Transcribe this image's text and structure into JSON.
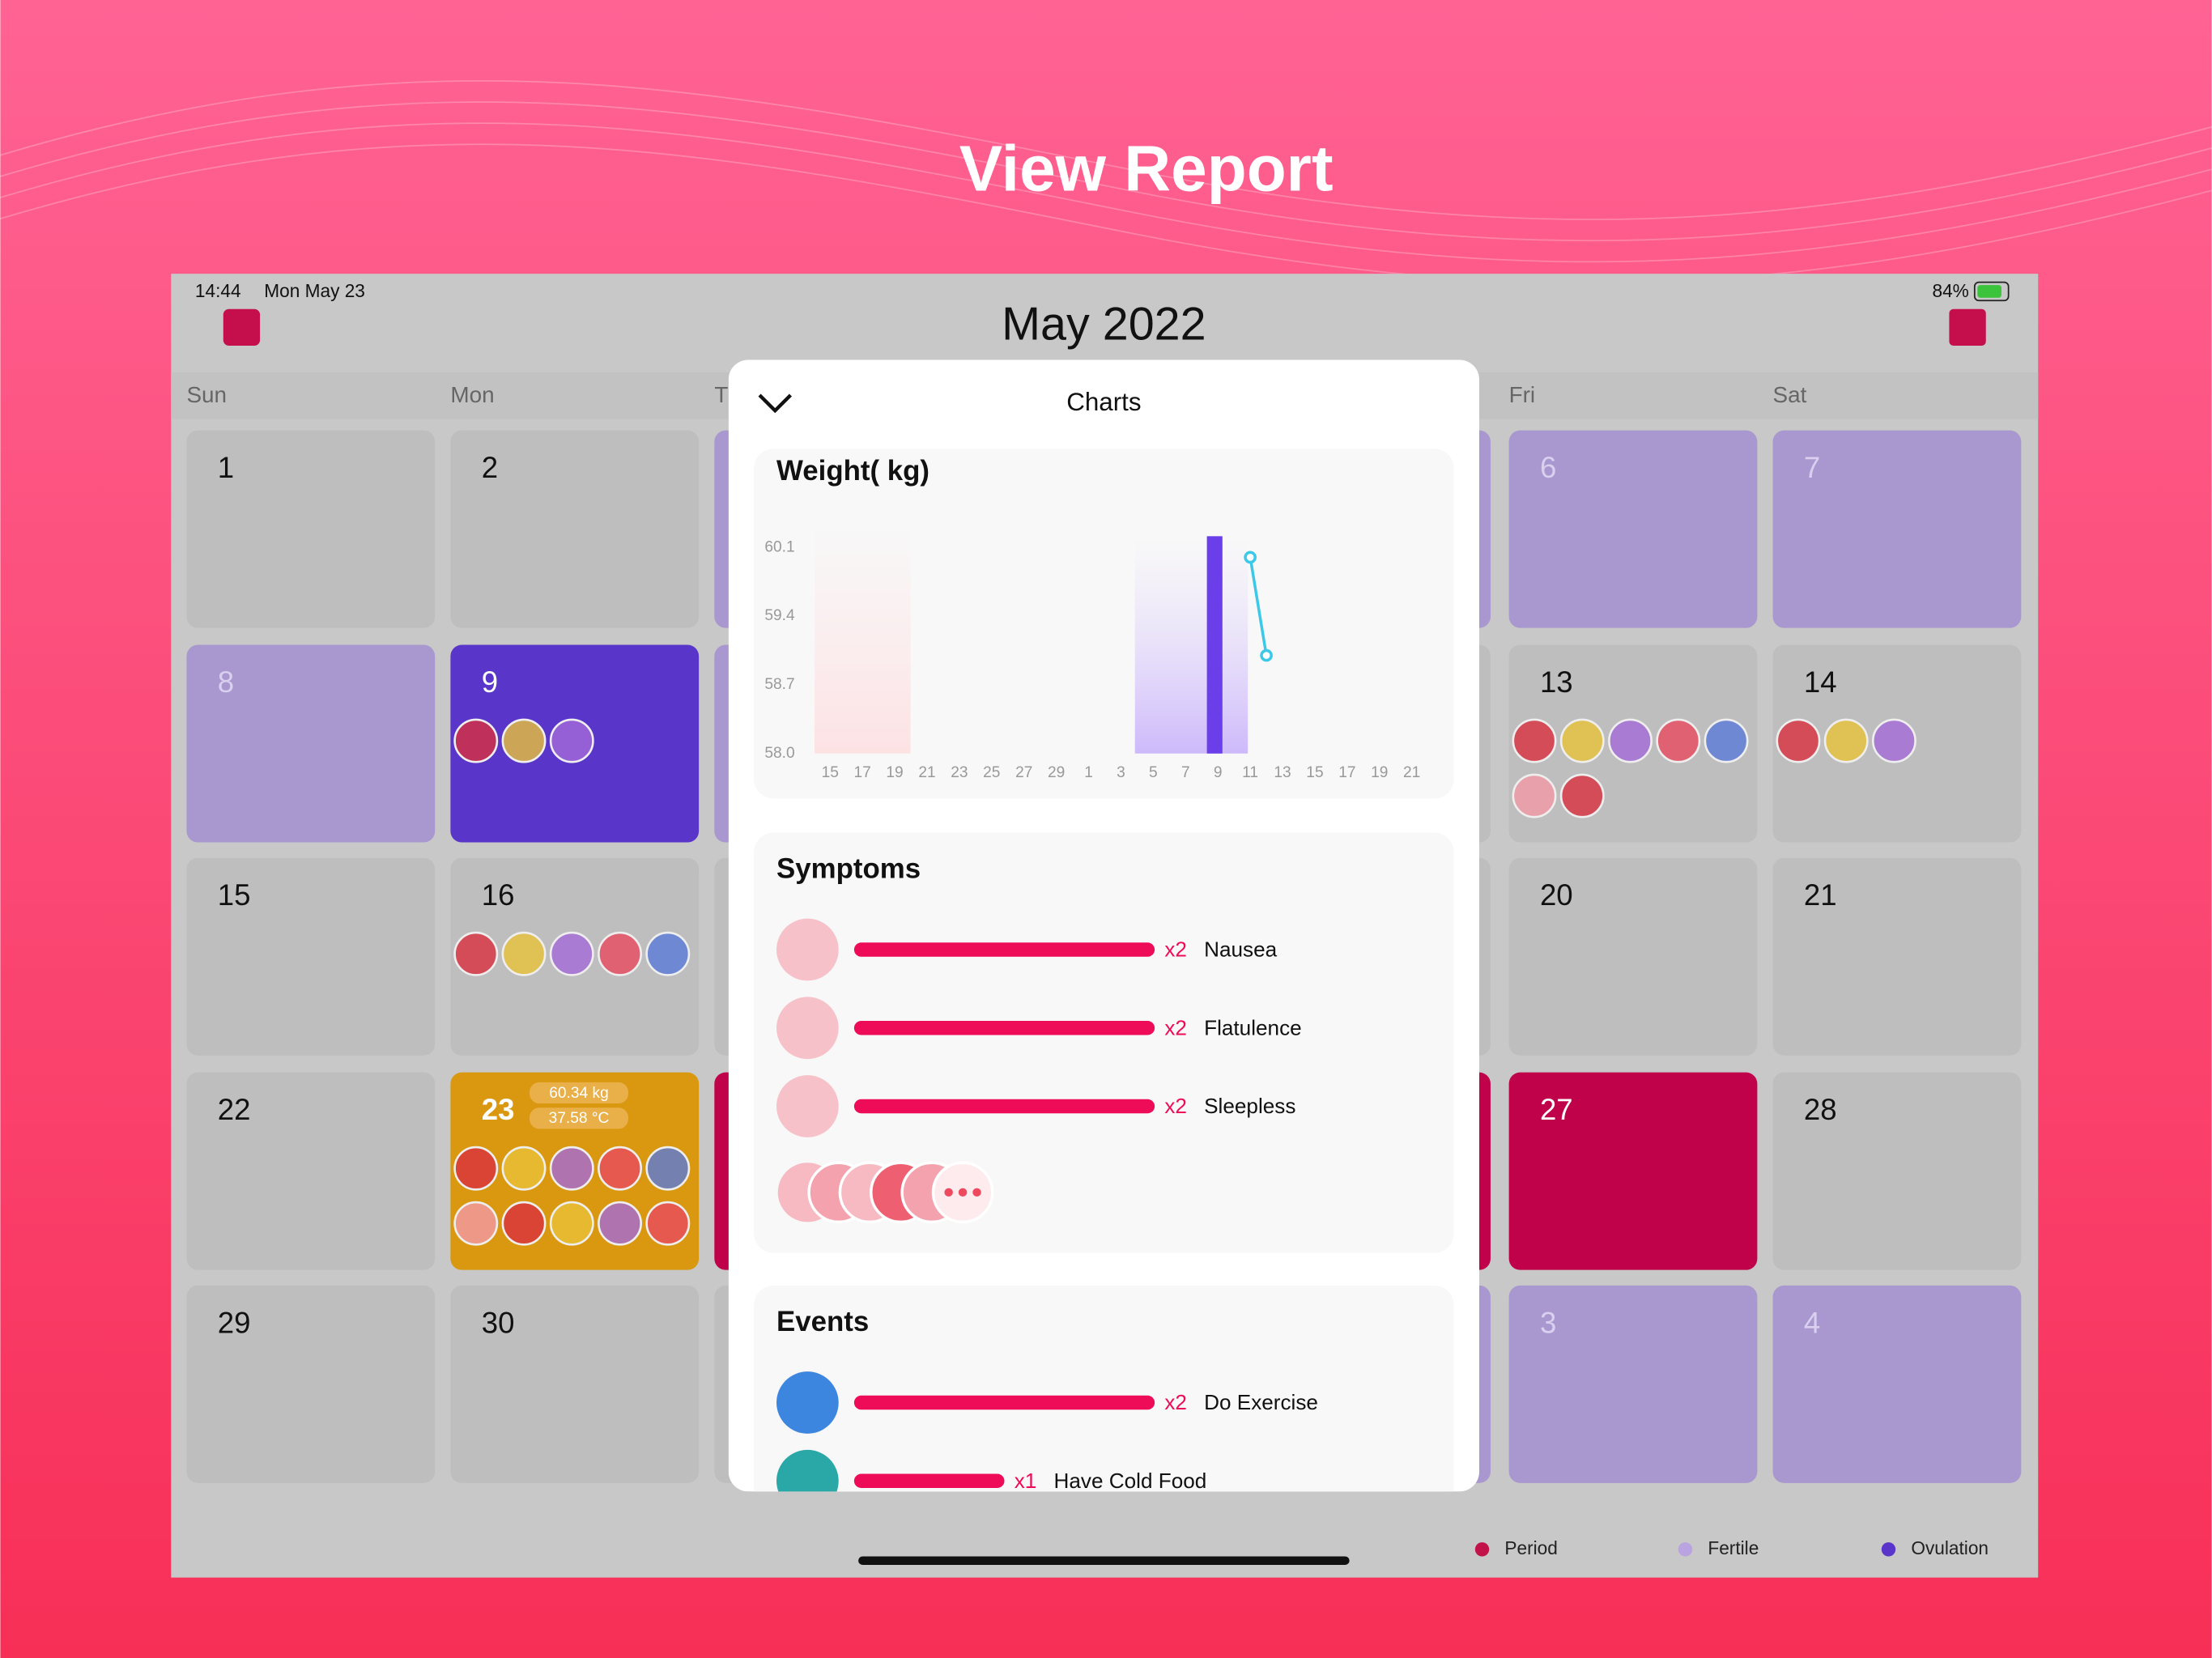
{
  "header": {
    "title": "View Report"
  },
  "status_bar": {
    "time": "14:44",
    "date": "Mon May 23",
    "battery": "84%"
  },
  "calendar": {
    "month": "May 2022",
    "weekdays": [
      "Sun",
      "Mon",
      "T",
      "Fri",
      "Sat"
    ],
    "days": [
      {
        "day": 1
      },
      {
        "day": 2
      },
      {
        "day": 6,
        "phase": "fertile"
      },
      {
        "day": 7,
        "phase": "fertile"
      },
      {
        "day": 8,
        "phase": "fertile"
      },
      {
        "day": 9,
        "phase": "ovulation"
      },
      {
        "day": 13
      },
      {
        "day": 14
      },
      {
        "day": 15
      },
      {
        "day": 16
      },
      {
        "day": 20
      },
      {
        "day": 21
      },
      {
        "day": 22
      },
      {
        "day": 23,
        "phase": "selected",
        "notes": [
          "60.34 kg",
          "37.58 °C"
        ]
      },
      {
        "day": 27,
        "phase": "period"
      },
      {
        "day": 28
      },
      {
        "day": 29
      },
      {
        "day": 30
      },
      {
        "day": 3,
        "phase": "fertile"
      },
      {
        "day": 4,
        "phase": "fertile"
      }
    ]
  },
  "legend": [
    {
      "name": "Period",
      "color": "#c2124a"
    },
    {
      "name": "Fertile",
      "color": "#b9a3e0"
    },
    {
      "name": "Ovulation",
      "color": "#5a35c9"
    }
  ],
  "modal": {
    "title": "Charts"
  },
  "chart_data": {
    "type": "line",
    "title": "Weight( kg)",
    "categories": [
      "15",
      null,
      "17",
      null,
      "19",
      null,
      "21",
      null,
      "23",
      null,
      "25",
      null,
      "27",
      null,
      "29",
      null,
      "1",
      null,
      "3",
      null,
      "5",
      null,
      "7",
      null,
      "9",
      null,
      "11",
      null,
      "13",
      null,
      "15",
      null,
      "17",
      null,
      "19",
      null,
      "21"
    ],
    "series": [
      {
        "name": "Weight",
        "color": "#3cc8e8",
        "values": [
          null,
          null,
          null,
          null,
          null,
          null,
          null,
          null,
          null,
          null,
          null,
          null,
          null,
          null,
          null,
          null,
          null,
          null,
          null,
          null,
          null,
          null,
          null,
          null,
          null,
          null,
          60.0,
          59.0,
          null,
          null,
          null,
          null,
          null,
          null,
          null,
          null,
          null
        ]
      }
    ],
    "ylim": [
      58.0,
      60.1
    ],
    "yticks": [
      {
        "value": 58.0,
        "label": "58.0"
      },
      {
        "value": 58.7,
        "label": "58.7"
      },
      {
        "value": 59.4,
        "label": "59.4"
      },
      {
        "value": 60.1,
        "label": "60.1"
      }
    ]
  },
  "symptoms": {
    "title": "Symptoms",
    "categories": [
      "Nausea",
      "Flatulence",
      "Sleepless"
    ],
    "values": [
      2,
      2,
      2
    ],
    "value_labels": [
      "x2",
      "x2",
      "x2"
    ],
    "color": "#ee0b58"
  },
  "events": {
    "title": "Events",
    "categories": [
      "Do Exercise",
      "Have Cold Food"
    ],
    "values": [
      2,
      1
    ],
    "value_labels": [
      "x2",
      "x1"
    ],
    "color": "#ee0b58"
  }
}
